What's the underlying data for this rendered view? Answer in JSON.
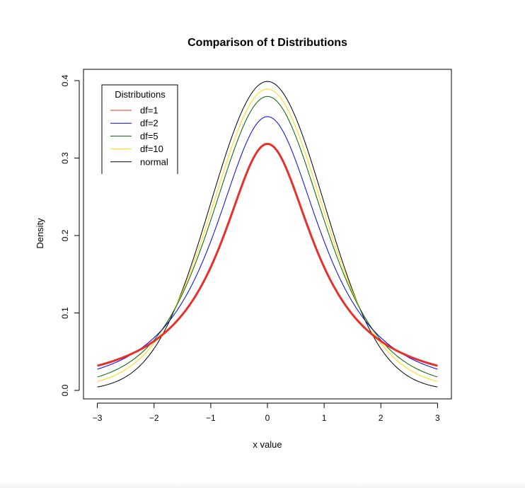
{
  "chart_data": {
    "type": "line",
    "title": "Comparison of t Distributions",
    "xlabel": "x value",
    "ylabel": "Density",
    "xlim": [
      -3,
      3
    ],
    "ylim": [
      0,
      0.4
    ],
    "x_ticks": [
      -3,
      -2,
      -1,
      0,
      1,
      2,
      3
    ],
    "y_ticks": [
      0.0,
      0.1,
      0.2,
      0.3,
      0.4
    ],
    "x_tick_labels": [
      "−3",
      "−2",
      "−1",
      "0",
      "1",
      "2",
      "3"
    ],
    "y_tick_labels": [
      "0.0",
      "0.1",
      "0.2",
      "0.3",
      "0.4"
    ],
    "grid": false,
    "legend": {
      "title": "Distributions",
      "position": "top-left",
      "entries": [
        {
          "label": "df=1",
          "color": "#e8302a"
        },
        {
          "label": "df=2",
          "color": "#0000ff"
        },
        {
          "label": "df=5",
          "color": "#006400"
        },
        {
          "label": "df=10",
          "color": "#ffd700"
        },
        {
          "label": "normal",
          "color": "#000000"
        }
      ]
    },
    "series": [
      {
        "name": "df=1",
        "color": "#e8302a",
        "line_width": 3,
        "df": 1,
        "peak_y": 0.318,
        "tail_y_at_3": 0.032
      },
      {
        "name": "df=2",
        "color": "#0000ff",
        "line_width": 1,
        "df": 2,
        "peak_y": 0.354,
        "tail_y_at_3": 0.027
      },
      {
        "name": "df=5",
        "color": "#006400",
        "line_width": 1,
        "df": 5,
        "peak_y": 0.38,
        "tail_y_at_3": 0.017
      },
      {
        "name": "df=10",
        "color": "#ffd700",
        "line_width": 1,
        "df": 10,
        "peak_y": 0.389,
        "tail_y_at_3": 0.011
      },
      {
        "name": "normal",
        "color": "#000000",
        "line_width": 1,
        "df": null,
        "peak_y": 0.399,
        "tail_y_at_3": 0.004
      }
    ]
  }
}
